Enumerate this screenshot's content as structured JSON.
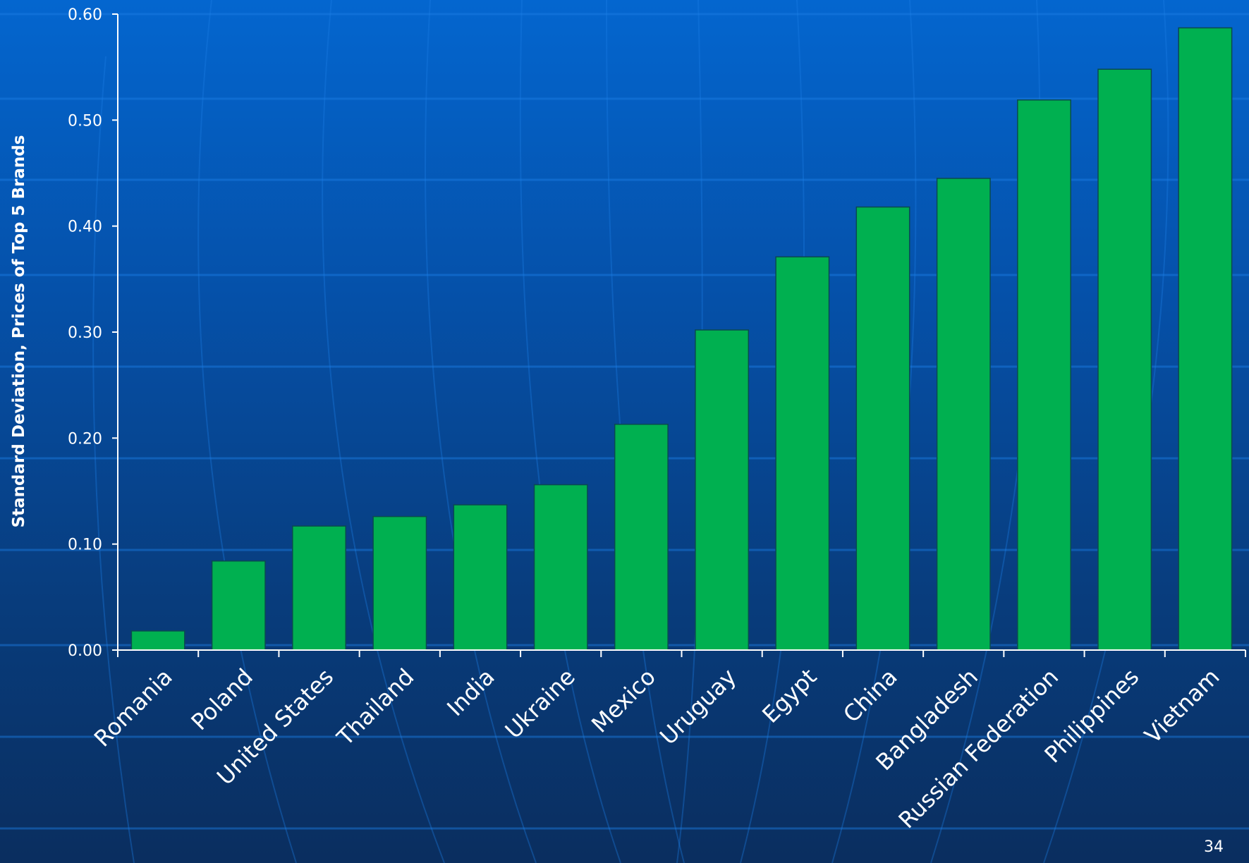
{
  "slide": {
    "page_number": "34",
    "background_colors": [
      "#0466cf",
      "#0a2e5f"
    ],
    "grid_line_color": "#1c7fe6"
  },
  "chart_data": {
    "type": "bar",
    "title": "",
    "xlabel": "",
    "ylabel": "Standard Deviation, Prices of Top 5 Brands",
    "ylim": [
      0,
      0.6
    ],
    "yticks": [
      "0.00",
      "0.10",
      "0.20",
      "0.30",
      "0.40",
      "0.50",
      "0.60"
    ],
    "bar_color": "#00b050",
    "categories": [
      "Romania",
      "Poland",
      "United States",
      "Thailand",
      "India",
      "Ukraine",
      "Mexico",
      "Uruguay",
      "Egypt",
      "China",
      "Bangladesh",
      "Russian Federation",
      "Philippines",
      "Vietnam"
    ],
    "values": [
      0.018,
      0.084,
      0.117,
      0.126,
      0.137,
      0.156,
      0.213,
      0.302,
      0.371,
      0.418,
      0.445,
      0.519,
      0.548,
      0.587
    ]
  }
}
